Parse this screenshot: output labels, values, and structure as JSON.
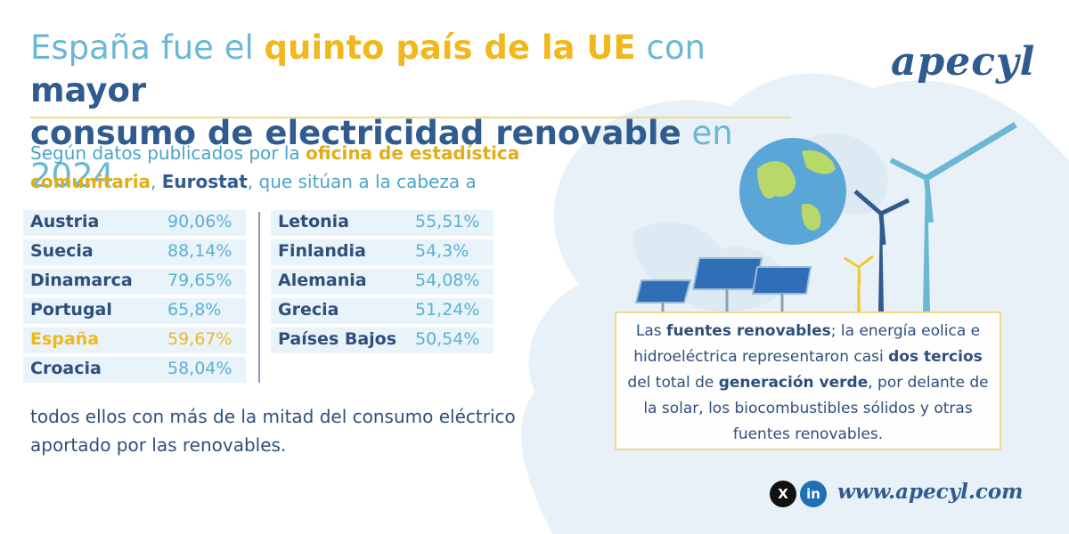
{
  "title": {
    "part1": "España fue el ",
    "part2": "quinto país de la UE",
    "part3": " con ",
    "part4": "mayor",
    "part5": "consumo de electricidad renovable",
    "part6": " en 2024"
  },
  "logo": "apecyl",
  "intro": {
    "part1": "Según datos publicados por la ",
    "part2": "oficina de estadística comunitaria",
    "part3": ", ",
    "part4": "Eurostat",
    "part5": ", que sitúan a la cabeza a"
  },
  "left_column": [
    {
      "country": "Austria",
      "value": "90,06%"
    },
    {
      "country": "Suecia",
      "value": "88,14%"
    },
    {
      "country": "Dinamarca",
      "value": "79,65%"
    },
    {
      "country": "Portugal",
      "value": "65,8%"
    },
    {
      "country": "España",
      "value": "59,67%"
    },
    {
      "country": "Croacia",
      "value": "58,04%"
    }
  ],
  "right_column": [
    {
      "country": "Letonia",
      "value": "55,51%"
    },
    {
      "country": "Finlandia",
      "value": "54,3%"
    },
    {
      "country": "Alemania",
      "value": "54,08%"
    },
    {
      "country": "Grecia",
      "value": "51,24%"
    },
    {
      "country": "Países Bajos",
      "value": "50,54%"
    }
  ],
  "outro": "todos ellos con más de la mitad del consumo eléctrico aportado por las renovables.",
  "infobox": {
    "p1": "Las ",
    "b1": "fuentes renovables",
    "p2": "; la energía eolica e hidroeléctrica representaron casi ",
    "b2": "dos tercios",
    "p3": " del total de ",
    "b3": "generación verde",
    "p4": ", por delante de la solar, los biocombustibles sólidos y otras fuentes renovables."
  },
  "social": {
    "x_icon": "x-icon",
    "linkedin_icon": "linkedin-icon",
    "x_label": "X",
    "linkedin_label": "in"
  },
  "website": "www.apecyl.com",
  "colors": {
    "accent_yellow": "#f0b81c",
    "dark_blue": "#2f5b8e",
    "light_blue": "#6ab7d6"
  }
}
